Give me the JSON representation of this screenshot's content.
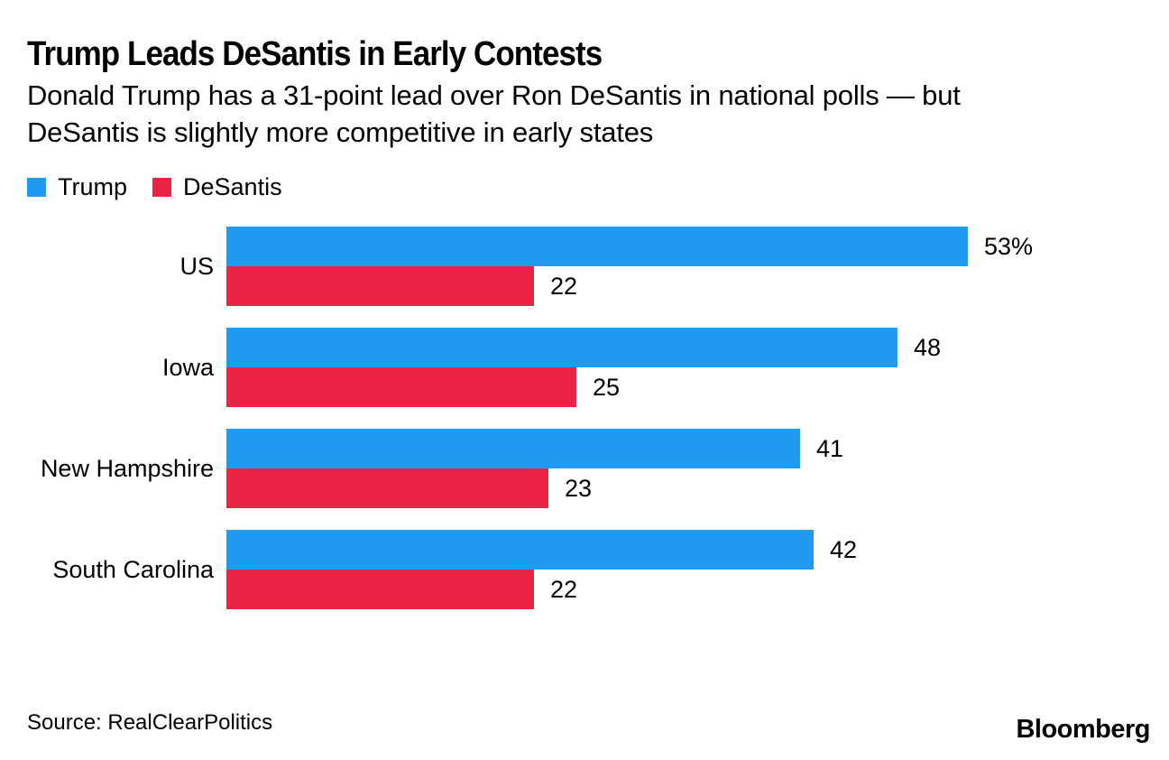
{
  "chart_data": {
    "type": "bar",
    "orientation": "horizontal",
    "title": "Trump Leads DeSantis in Early Contests",
    "subtitle_lines": [
      "Donald Trump has a 31-point lead over Ron DeSantis in national polls — but",
      "DeSantis is slightly more competitive in early states"
    ],
    "categories": [
      "US",
      "Iowa",
      "New Hampshire",
      "South Carolina"
    ],
    "series": [
      {
        "name": "Trump",
        "color": "#1E9BF0",
        "values": [
          53,
          48,
          41,
          42
        ],
        "display_labels": [
          "53%",
          "48",
          "41",
          "42"
        ]
      },
      {
        "name": "DeSantis",
        "color": "#EB2443",
        "values": [
          22,
          25,
          23,
          22
        ],
        "display_labels": [
          "22",
          "25",
          "23",
          "22"
        ]
      }
    ],
    "xlim": [
      0,
      53
    ],
    "grid": false,
    "legend_position": "top-left",
    "value_labels": "outside-end"
  },
  "footer": {
    "source": "Source: RealClearPolitics",
    "brand": "Bloomberg"
  }
}
